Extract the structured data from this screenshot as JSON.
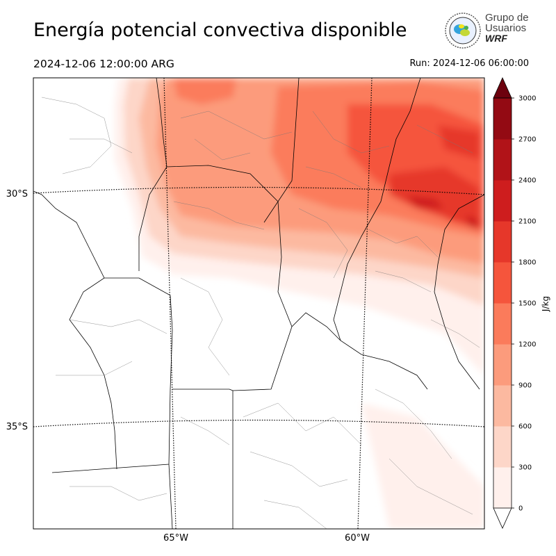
{
  "header": {
    "title": "Energía potencial convectiva disponible",
    "valid_time": "2024-12-06 12:00:00 ARG",
    "run_time": "Run: 2024-12-06 06:00:00"
  },
  "logo": {
    "line1": "Grupo de",
    "line2": "Usuarios",
    "line3": "WRF"
  },
  "map": {
    "lat_labels": [
      "30°S",
      "35°S"
    ],
    "lon_labels": [
      "65°W",
      "60°W"
    ]
  },
  "colorbar": {
    "unit": "J/kg",
    "ticks": [
      "0",
      "300",
      "600",
      "900",
      "1200",
      "1500",
      "1800",
      "2100",
      "2400",
      "2700",
      "3000"
    ],
    "colors": [
      "#fff0ec",
      "#fdd6c8",
      "#fcb9a0",
      "#fc9b7c",
      "#fb7b5b",
      "#f5553c",
      "#e6372a",
      "#ce1d1e",
      "#b11318",
      "#930a13",
      "#6d010e"
    ],
    "min": 0,
    "max": 3000,
    "step": 300
  }
}
